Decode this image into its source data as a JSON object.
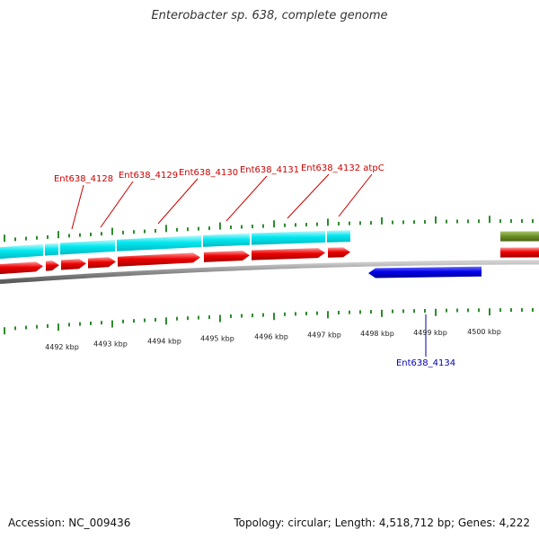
{
  "title": "Enterobacter sp. 638, complete genome",
  "footer": {
    "accession": "Accession: NC_009436",
    "summary": "Topology: circular; Length: 4,518,712 bp; Genes: 4,222"
  },
  "colors": {
    "forward_cds": "#ee0000",
    "forward_gene": "#00e8f0",
    "reverse_cds": "#0000ee",
    "other_feature": "#6b8e23",
    "backbone": "#8c8c8c",
    "tick": "#2e8b2e",
    "forward_label": "#cc0000",
    "reverse_label": "#0000aa"
  },
  "scale_labels": [
    "4492 kbp",
    "4493 kbp",
    "4494 kbp",
    "4495 kbp",
    "4496 kbp",
    "4497 kbp",
    "4498 kbp",
    "4499 kbp",
    "4500 kbp"
  ],
  "gene_labels": [
    {
      "name": "Ent638_4128",
      "strand": "forward"
    },
    {
      "name": "Ent638_4129",
      "strand": "forward"
    },
    {
      "name": "Ent638_4130",
      "strand": "forward"
    },
    {
      "name": "Ent638_4131",
      "strand": "forward"
    },
    {
      "name": "Ent638_4132",
      "strand": "forward"
    },
    {
      "name": "atpC",
      "strand": "forward"
    },
    {
      "name": "Ent638_4134",
      "strand": "reverse"
    }
  ]
}
